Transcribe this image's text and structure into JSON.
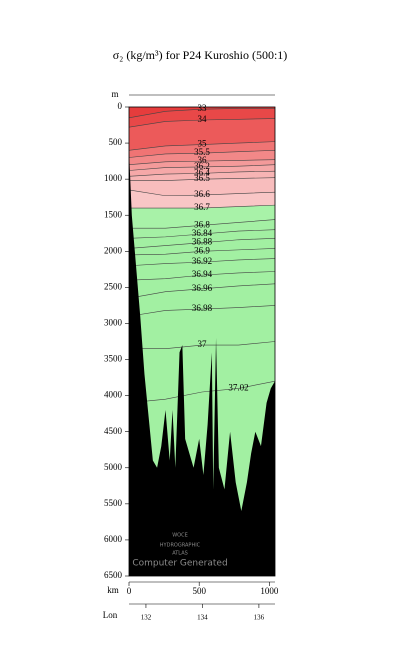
{
  "chart_data": {
    "type": "contour",
    "title": "σ₂ (kg/m³) for P24 Kuroshio (500:1)",
    "y_label": "m",
    "x_label": "km",
    "lon_label": "Lon",
    "xlim": [
      0,
      1040
    ],
    "xticks": [
      0,
      500,
      1000
    ],
    "ylim": [
      0,
      6500
    ],
    "yticks": [
      0,
      500,
      1000,
      1500,
      2000,
      2500,
      3000,
      3500,
      4000,
      4500,
      5000,
      5500,
      6000,
      6500
    ],
    "lonlim": [
      131.4,
      136.57
    ],
    "lonticks": [
      132,
      134,
      136
    ],
    "background_color": "#e63c3c",
    "contour_x": [
      0,
      260,
      520,
      780,
      1040
    ],
    "contours": [
      {
        "value": 33,
        "color": "#e84848",
        "depths": [
          150,
          60,
          30,
          20,
          20
        ]
      },
      {
        "value": 34,
        "color": "#ec5a5a",
        "depths": [
          280,
          200,
          180,
          170,
          160
        ]
      },
      {
        "value": 35,
        "color": "#f07474",
        "depths": [
          600,
          540,
          520,
          500,
          480
        ]
      },
      {
        "value": 35.5,
        "color": "#f28888",
        "depths": [
          700,
          650,
          640,
          620,
          600
        ]
      },
      {
        "value": 36,
        "color": "#f49a9a",
        "depths": [
          800,
          760,
          750,
          740,
          730
        ]
      },
      {
        "value": 36.2,
        "color": "#f6a8a8",
        "depths": [
          880,
          840,
          830,
          820,
          800
        ]
      },
      {
        "value": 36.4,
        "color": "#f7b4b4",
        "depths": [
          960,
          930,
          920,
          900,
          890
        ]
      },
      {
        "value": 36.5,
        "color": "#f8bdbd",
        "depths": [
          1020,
          1020,
          1000,
          990,
          980
        ]
      },
      {
        "value": 36.6,
        "color": "#f9c6c6",
        "depths": [
          1150,
          1230,
          1220,
          1200,
          1180
        ]
      },
      {
        "value": 36.7,
        "color": "#a8f2a8",
        "depths": [
          1400,
          1400,
          1400,
          1380,
          1360
        ]
      },
      {
        "value": 36.8,
        "color": "#a4f0a4",
        "depths": [
          1680,
          1680,
          1640,
          1600,
          1560
        ]
      },
      {
        "value": 36.84,
        "color": "#a2f0a2",
        "depths": [
          1820,
          1800,
          1760,
          1720,
          1700
        ]
      },
      {
        "value": 36.88,
        "color": "#a2f0a2",
        "depths": [
          1960,
          1920,
          1880,
          1840,
          1820
        ]
      },
      {
        "value": 36.9,
        "color": "#a2f0a2",
        "depths": [
          2050,
          2040,
          2000,
          1980,
          1960
        ]
      },
      {
        "value": 36.92,
        "color": "#a2f0a2",
        "depths": [
          2200,
          2170,
          2150,
          2120,
          2100
        ]
      },
      {
        "value": 36.94,
        "color": "#a2f0a2",
        "depths": [
          2400,
          2380,
          2330,
          2300,
          2280
        ]
      },
      {
        "value": 36.96,
        "color": "#a2f0a2",
        "depths": [
          2650,
          2560,
          2520,
          2480,
          2450
        ]
      },
      {
        "value": 36.98,
        "color": "#a2f0a2",
        "depths": [
          2900,
          2820,
          2800,
          2780,
          2750
        ]
      },
      {
        "value": 37,
        "color": "#a2f0a2",
        "depths": [
          3350,
          3350,
          3300,
          3300,
          3250
        ]
      },
      {
        "value": 37.02,
        "color": "#a2f0a2",
        "depths": [
          4100,
          4050,
          3950,
          3900,
          3800
        ]
      }
    ],
    "bottom_color": "#000000",
    "bottom_x": [
      0,
      20,
      50,
      80,
      110,
      140,
      170,
      200,
      230,
      260,
      290,
      310,
      330,
      360,
      380,
      400,
      430,
      460,
      500,
      530,
      560,
      590,
      600,
      620,
      640,
      680,
      720,
      760,
      800,
      840,
      870,
      900,
      940,
      980,
      1010,
      1040
    ],
    "bottom_depths": [
      600,
      1500,
      2200,
      2900,
      3700,
      4300,
      4900,
      5000,
      4700,
      4200,
      4900,
      4200,
      5000,
      3400,
      3300,
      4600,
      4800,
      5000,
      4600,
      5100,
      4400,
      3400,
      5300,
      3200,
      5000,
      5300,
      4500,
      5200,
      5600,
      5200,
      4800,
      4500,
      4700,
      4100,
      3900,
      3800
    ],
    "watermark": [
      "WOCE",
      "HYDROGRAPHIC",
      "ATLAS",
      "Computer Generated"
    ]
  }
}
